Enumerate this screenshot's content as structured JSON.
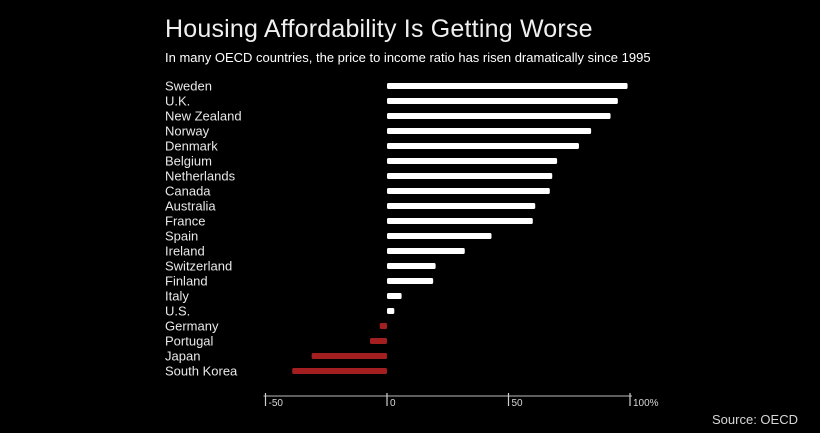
{
  "colors": {
    "background": "#000000",
    "positive_bar": "#ffffff",
    "negative_bar": "#a31f1f",
    "text": "#ffffff"
  },
  "chart_data": {
    "type": "bar",
    "orientation": "horizontal",
    "title": "Housing Affordability Is Getting Worse",
    "subtitle": "In many OECD countries, the price to income ratio has risen dramatically since 1995",
    "source": "Source: OECD",
    "xlabel": "",
    "ylabel": "",
    "xlim": [
      -50,
      100
    ],
    "ticks": [
      -50,
      0,
      50,
      100
    ],
    "tick_labels": [
      "-50",
      "0",
      "50",
      "100%"
    ],
    "categories": [
      "Sweden",
      "U.K.",
      "New Zealand",
      "Norway",
      "Denmark",
      "Belgium",
      "Netherlands",
      "Canada",
      "Australia",
      "France",
      "Spain",
      "Ireland",
      "Switzerland",
      "Finland",
      "Italy",
      "U.S.",
      "Germany",
      "Portugal",
      "Japan",
      "South Korea"
    ],
    "values": [
      99,
      95,
      92,
      84,
      79,
      70,
      68,
      67,
      61,
      60,
      43,
      32,
      20,
      19,
      6,
      3,
      -3,
      -7,
      -31,
      -39
    ],
    "grid": false
  }
}
